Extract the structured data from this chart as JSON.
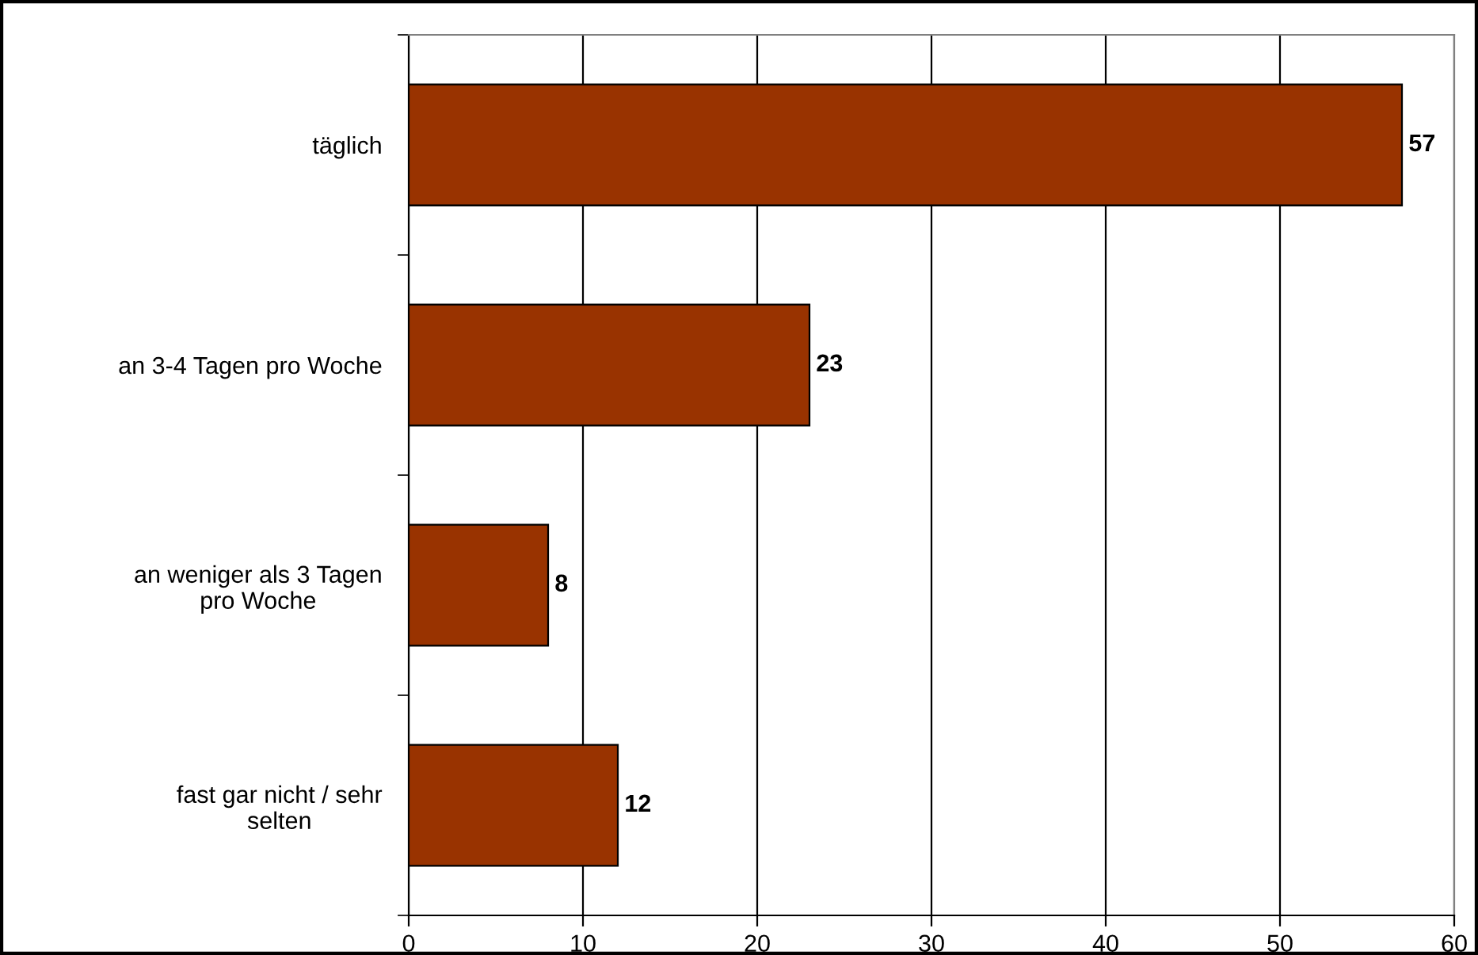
{
  "chart_data": {
    "type": "bar",
    "orientation": "horizontal",
    "categories": [
      "täglich",
      "an 3-4 Tagen pro Woche",
      "an weniger als 3 Tagen\npro Woche",
      "fast gar nicht / sehr\nselten"
    ],
    "values": [
      57,
      23,
      8,
      12
    ],
    "color": "#993300",
    "xlim": [
      0,
      60
    ],
    "xticks": [
      0,
      10,
      20,
      30,
      40,
      50,
      60
    ],
    "grid": "x",
    "data_labels": true
  }
}
